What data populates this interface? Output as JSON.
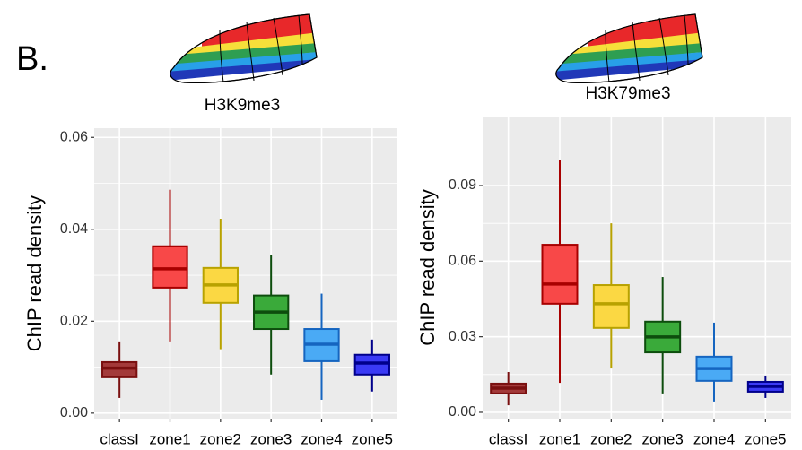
{
  "panel_label": "B.",
  "chart_data": [
    {
      "type": "box",
      "title": "H3K9me3",
      "y_label": "ChIP read density",
      "categories": [
        "classI",
        "zone1",
        "zone2",
        "zone3",
        "zone4",
        "zone5"
      ],
      "colors": [
        "#7a1010",
        "#a80000",
        "#b8a200",
        "#0d4d0d",
        "#1565c0",
        "#00008b"
      ],
      "fills": [
        "#a33a3a",
        "#f84848",
        "#fbd843",
        "#3aaa3a",
        "#4aaaf5",
        "#3a3af5"
      ],
      "whisker_low": [
        0.0033,
        0.0156,
        0.0139,
        0.0084,
        0.0029,
        0.0047
      ],
      "q1": [
        0.0078,
        0.0273,
        0.024,
        0.0183,
        0.0113,
        0.0084
      ],
      "median": [
        0.0098,
        0.0314,
        0.0279,
        0.022,
        0.015,
        0.0109
      ],
      "q3": [
        0.0111,
        0.0363,
        0.0316,
        0.0256,
        0.0183,
        0.0127
      ],
      "whisker_high": [
        0.0156,
        0.0486,
        0.0423,
        0.0343,
        0.026,
        0.016
      ],
      "ylim": [
        -0.0012,
        0.062
      ],
      "yticks": [
        {
          "value": 0,
          "label": "0.00"
        },
        {
          "value": 0.02,
          "label": "0.02"
        },
        {
          "value": 0.04,
          "label": "0.04"
        },
        {
          "value": 0.06,
          "label": "0.06"
        }
      ],
      "grid": true
    },
    {
      "type": "box",
      "title": "H3K79me3",
      "y_label": "ChIP read density",
      "categories": [
        "classI",
        "zone1",
        "zone2",
        "zone3",
        "zone4",
        "zone5"
      ],
      "colors": [
        "#7a1010",
        "#a80000",
        "#b8a200",
        "#0d4d0d",
        "#1565c0",
        "#00008b"
      ],
      "fills": [
        "#a33a3a",
        "#f84848",
        "#fbd843",
        "#3aaa3a",
        "#4aaaf5",
        "#3a3af5"
      ],
      "whisker_low": [
        0.0028,
        0.0117,
        0.0174,
        0.0075,
        0.0043,
        0.0057
      ],
      "q1": [
        0.0075,
        0.0431,
        0.0335,
        0.0238,
        0.0125,
        0.0082
      ],
      "median": [
        0.0096,
        0.0509,
        0.0431,
        0.0299,
        0.0174,
        0.0103
      ],
      "q3": [
        0.0114,
        0.0665,
        0.0505,
        0.036,
        0.0221,
        0.0121
      ],
      "whisker_high": [
        0.016,
        0.1,
        0.075,
        0.0537,
        0.0356,
        0.0146
      ],
      "ylim": [
        -0.0025,
        0.1174
      ],
      "yticks": [
        {
          "value": 0,
          "label": "0.00"
        },
        {
          "value": 0.03,
          "label": "0.03"
        },
        {
          "value": 0.06,
          "label": "0.06"
        },
        {
          "value": 0.09,
          "label": "0.09"
        }
      ],
      "grid": true
    }
  ]
}
